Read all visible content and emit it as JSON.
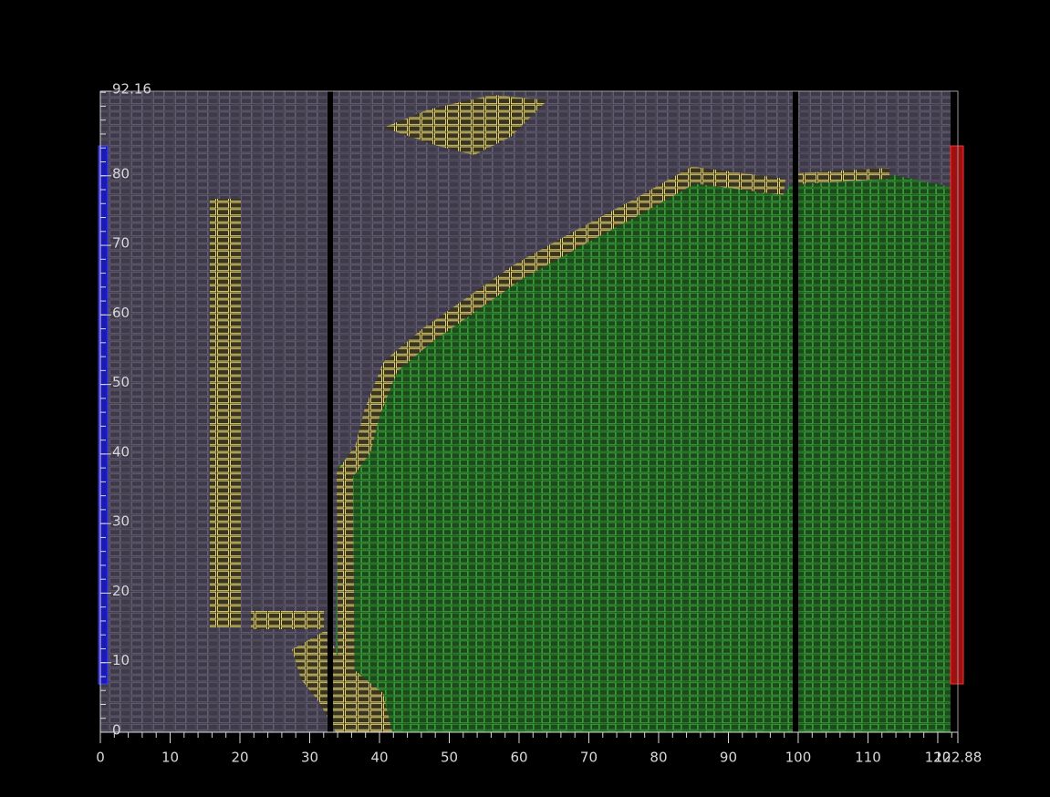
{
  "chart_data": {
    "type": "layout",
    "xlim": [
      0,
      122.88
    ],
    "ylim": [
      0,
      92.16
    ],
    "xticks": [
      0,
      10,
      20,
      30,
      40,
      50,
      60,
      70,
      80,
      90,
      100,
      110,
      120,
      122.88
    ],
    "yticks": [
      0,
      10,
      20,
      30,
      40,
      50,
      60,
      70,
      80,
      92.16
    ],
    "xminorticks": [
      0,
      2,
      4,
      6,
      8,
      10,
      12,
      14,
      16,
      18,
      20,
      22,
      24,
      26,
      28,
      30,
      32,
      34,
      36,
      38,
      40,
      42,
      44,
      46,
      48,
      50,
      52,
      54,
      56,
      58,
      60,
      62,
      64,
      66,
      68,
      70,
      72,
      74,
      76,
      78,
      80,
      82,
      84,
      86,
      88,
      90,
      92,
      94,
      96,
      98,
      100,
      102,
      104,
      106,
      108,
      110,
      112,
      114,
      116,
      118,
      120,
      122
    ],
    "yminorticks": [
      0,
      2,
      4,
      6,
      8,
      10,
      12,
      14,
      16,
      18,
      20,
      22,
      24,
      26,
      28,
      30,
      32,
      34,
      36,
      38,
      40,
      42,
      44,
      46,
      48,
      50,
      52,
      54,
      56,
      58,
      60,
      62,
      64,
      66,
      68,
      70,
      72,
      74,
      76,
      78,
      80,
      82,
      84,
      86,
      88,
      90,
      92
    ]
  }
}
